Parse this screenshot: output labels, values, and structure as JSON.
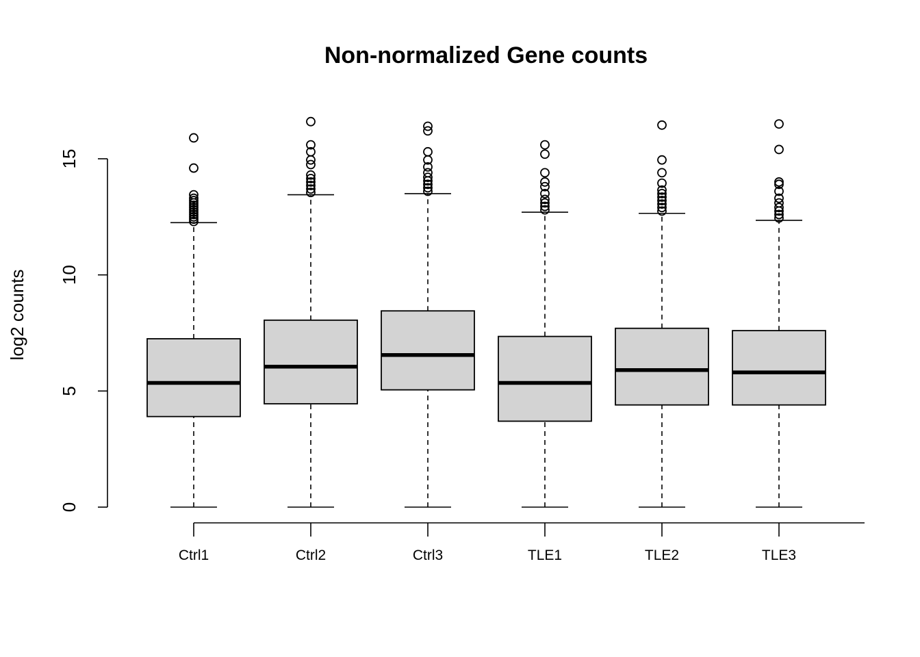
{
  "chart_data": {
    "type": "boxplot",
    "title": "Non-normalized Gene counts",
    "xlabel": "",
    "ylabel": "log2 counts",
    "categories": [
      "Ctrl1",
      "Ctrl2",
      "Ctrl3",
      "TLE1",
      "TLE2",
      "TLE3"
    ],
    "yticks": [
      0,
      5,
      10,
      15
    ],
    "ylim": [
      0,
      17
    ],
    "grid": false,
    "box_fill": "#d3d3d3",
    "boxes": [
      {
        "name": "Ctrl1",
        "min": 0,
        "q1": 3.9,
        "median": 5.35,
        "q3": 7.25,
        "whisker_high": 12.25,
        "outliers": [
          12.3,
          12.4,
          12.5,
          12.6,
          12.7,
          12.8,
          12.9,
          13.0,
          13.1,
          13.2,
          13.3,
          13.45,
          14.6,
          15.9
        ]
      },
      {
        "name": "Ctrl2",
        "min": 0,
        "q1": 4.45,
        "median": 6.05,
        "q3": 8.05,
        "whisker_high": 13.45,
        "outliers": [
          13.55,
          13.7,
          13.85,
          14.0,
          14.15,
          14.3,
          14.75,
          14.95,
          15.3,
          15.6,
          16.6
        ]
      },
      {
        "name": "Ctrl3",
        "min": 0,
        "q1": 5.05,
        "median": 6.55,
        "q3": 8.45,
        "whisker_high": 13.5,
        "outliers": [
          13.6,
          13.75,
          13.9,
          14.05,
          14.2,
          14.4,
          14.65,
          14.95,
          15.3,
          16.2,
          16.4
        ]
      },
      {
        "name": "TLE1",
        "min": 0,
        "q1": 3.7,
        "median": 5.35,
        "q3": 7.35,
        "whisker_high": 12.7,
        "outliers": [
          12.8,
          12.95,
          13.1,
          13.25,
          13.5,
          13.8,
          14.0,
          14.4,
          15.2,
          15.6
        ]
      },
      {
        "name": "TLE2",
        "min": 0,
        "q1": 4.4,
        "median": 5.9,
        "q3": 7.7,
        "whisker_high": 12.65,
        "outliers": [
          12.75,
          12.9,
          13.05,
          13.2,
          13.35,
          13.5,
          13.65,
          13.95,
          14.4,
          14.95,
          16.45
        ]
      },
      {
        "name": "TLE3",
        "min": 0,
        "q1": 4.4,
        "median": 5.8,
        "q3": 7.6,
        "whisker_high": 12.35,
        "outliers": [
          12.45,
          12.6,
          12.75,
          12.9,
          13.1,
          13.3,
          13.6,
          13.9,
          14.0,
          15.4,
          16.5
        ]
      }
    ]
  }
}
